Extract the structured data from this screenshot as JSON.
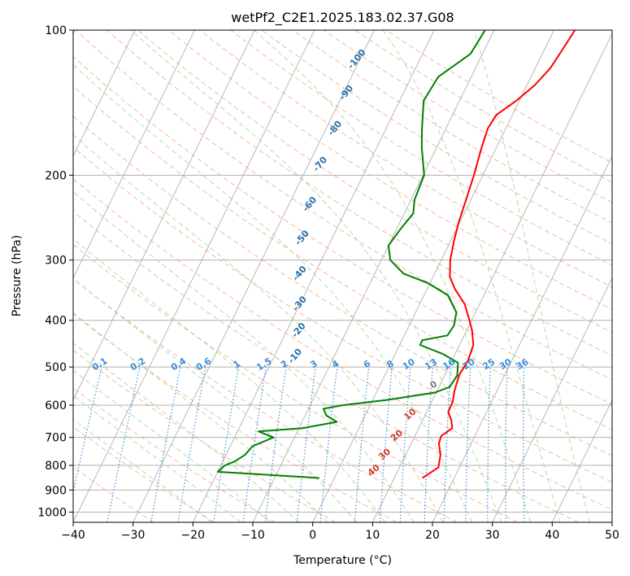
{
  "chart_data": {
    "type": "line",
    "subtype": "skew-T log-P",
    "title": "wetPf2_C2E1.2025.183.02.37.G08",
    "xlabel": "Temperature (°C)",
    "ylabel": "Pressure (hPa)",
    "xlim": [
      -40,
      50
    ],
    "ylim": [
      1050,
      100
    ],
    "y_scale": "log",
    "grid": true,
    "x_ticks": [
      -40,
      -30,
      -20,
      -10,
      0,
      10,
      20,
      30,
      40,
      50
    ],
    "x_tick_labels": [
      "−40",
      "−30",
      "−20",
      "−10",
      "0",
      "10",
      "20",
      "30",
      "40",
      "50"
    ],
    "y_ticks": [
      100,
      200,
      300,
      400,
      500,
      600,
      700,
      800,
      900,
      1000
    ],
    "y_tick_labels": [
      "100",
      "200",
      "300",
      "400",
      "500",
      "600",
      "700",
      "800",
      "900",
      "1000"
    ],
    "colors": {
      "temperature": "#ff0000",
      "dewpoint": "#008000",
      "isotherm": "#b0b0b0",
      "dry_adiabat": "#f4a582",
      "moist_adiabat": "#a6d9a0",
      "mixing_ratio": "#3a8fd9",
      "dry_label": "#d03a2a",
      "moist_label": "#2a6fa8"
    },
    "series": [
      {
        "name": "Temperature",
        "points": [
          [
            14.7,
            850
          ],
          [
            16.5,
            808
          ],
          [
            15.8,
            760
          ],
          [
            14.6,
            720
          ],
          [
            14.4,
            695
          ],
          [
            15.6,
            670
          ],
          [
            14.8,
            645
          ],
          [
            13.6,
            620
          ],
          [
            13.5,
            590
          ],
          [
            12.9,
            560
          ],
          [
            12.4,
            520
          ],
          [
            12.7,
            485
          ],
          [
            12.3,
            450
          ],
          [
            10.9,
            420
          ],
          [
            9.3,
            395
          ],
          [
            7.5,
            370
          ],
          [
            4.7,
            345
          ],
          [
            2.8,
            325
          ],
          [
            1.5,
            300
          ],
          [
            0.6,
            275
          ],
          [
            -0.2,
            250
          ],
          [
            -0.8,
            225
          ],
          [
            -1.5,
            200
          ],
          [
            -2.5,
            175
          ],
          [
            -3.0,
            160
          ],
          [
            -2.7,
            150
          ],
          [
            -0.5,
            140
          ],
          [
            1.3,
            130
          ],
          [
            2.5,
            120
          ],
          [
            3.0,
            110
          ],
          [
            3.5,
            100
          ]
        ]
      },
      {
        "name": "Dewpoint",
        "points": [
          [
            -2.5,
            850
          ],
          [
            -20.0,
            825
          ],
          [
            -19.3,
            800
          ],
          [
            -18.0,
            785
          ],
          [
            -16.8,
            760
          ],
          [
            -16.3,
            730
          ],
          [
            -13.5,
            700
          ],
          [
            -16.5,
            680
          ],
          [
            -9.5,
            670
          ],
          [
            -4.2,
            650
          ],
          [
            -6.5,
            630
          ],
          [
            -7.5,
            610
          ],
          [
            -4.5,
            600
          ],
          [
            2.5,
            585
          ],
          [
            9.8,
            565
          ],
          [
            11.8,
            550
          ],
          [
            12.1,
            520
          ],
          [
            11.2,
            490
          ],
          [
            8.0,
            470
          ],
          [
            3.4,
            450
          ],
          [
            3.4,
            440
          ],
          [
            7.2,
            430
          ],
          [
            7.5,
            410
          ],
          [
            6.8,
            385
          ],
          [
            4.0,
            355
          ],
          [
            -0.3,
            335
          ],
          [
            -5.2,
            320
          ],
          [
            -8.5,
            300
          ],
          [
            -10.0,
            280
          ],
          [
            -9.4,
            260
          ],
          [
            -8.5,
            240
          ],
          [
            -9.4,
            225
          ],
          [
            -9.8,
            200
          ],
          [
            -12.5,
            175
          ],
          [
            -14.0,
            160
          ],
          [
            -16.0,
            140
          ],
          [
            -15.5,
            125
          ],
          [
            -12.0,
            112
          ],
          [
            -11.5,
            100
          ]
        ]
      }
    ],
    "dry_adiabats_C": [
      -30,
      -20,
      -10,
      0,
      10,
      20,
      30,
      40,
      50,
      60,
      70,
      80,
      90,
      100,
      110,
      120,
      130,
      140,
      150,
      160,
      170,
      180,
      190,
      200
    ],
    "moist_adiabats_C": [
      -20,
      -15,
      -10,
      -5,
      0,
      5,
      10,
      15,
      20,
      25,
      30,
      35,
      40,
      45
    ],
    "mixing_ratio_lines_gkg": [
      0.1,
      0.2,
      0.4,
      0.6,
      1,
      1.5,
      2,
      3,
      4,
      6,
      8,
      10,
      13,
      16,
      20,
      25,
      30,
      36
    ],
    "mixing_ratio_labels": [
      "0.1",
      "0.2",
      "0.4",
      "0.6",
      "1",
      "1.5",
      "2",
      "3",
      "4",
      "6",
      "8",
      "10",
      "13",
      "16",
      "20",
      "25",
      "30",
      "36"
    ],
    "moist_adiabat_labels": [
      "-100",
      "-90",
      "-80",
      "-70",
      "-60",
      "-50",
      "-40",
      "-30",
      "-20",
      "-10"
    ],
    "dry_adiabat_labels": [
      "0",
      "10",
      "20",
      "30",
      "40"
    ]
  }
}
